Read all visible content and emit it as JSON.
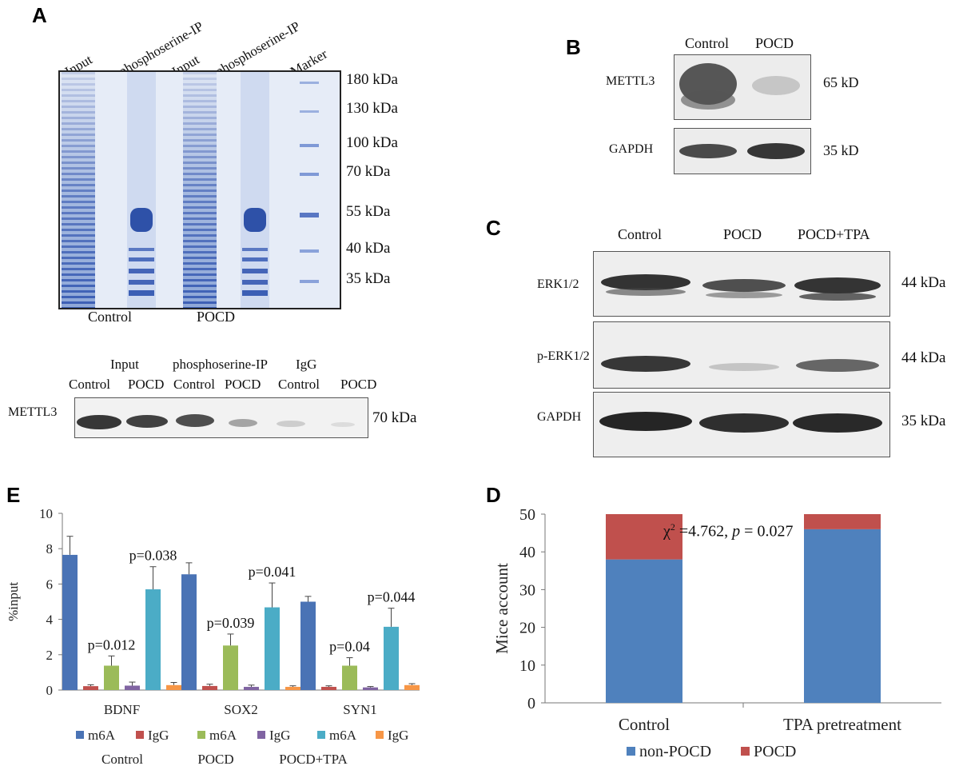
{
  "panelA": {
    "letter": "A",
    "lanes": [
      "Input",
      "phosphoserine-IP",
      "Input",
      "phosphoserine-IP",
      "Marker"
    ],
    "mw": [
      "180 kDa",
      "130 kDa",
      "100 kDa",
      "70 kDa",
      "55 kDa",
      "40 kDa",
      "35 kDa"
    ],
    "groups": [
      "Control",
      "POCD"
    ],
    "wb": {
      "top_labels": [
        "Input",
        "phosphoserine-IP",
        "IgG"
      ],
      "lane_labels": [
        "Control",
        "POCD",
        "Control",
        "POCD",
        "Control",
        "POCD"
      ],
      "row_label": "METTL3",
      "size": "70 kDa"
    }
  },
  "panelB": {
    "letter": "B",
    "lanes": [
      "Control",
      "POCD"
    ],
    "rows": [
      {
        "label": "METTL3",
        "size": "65 kD"
      },
      {
        "label": "GAPDH",
        "size": "35 kD"
      }
    ]
  },
  "panelC": {
    "letter": "C",
    "lanes": [
      "Control",
      "POCD",
      "POCD+TPA"
    ],
    "rows": [
      {
        "label": "ERK1/2",
        "size": "44 kDa"
      },
      {
        "label": "p-ERK1/2",
        "size": "44 kDa"
      },
      {
        "label": "GAPDH",
        "size": "35 kDa"
      }
    ]
  },
  "panelE": {
    "letter": "E",
    "legend_groups": [
      "Control",
      "POCD",
      "POCD+TPA"
    ]
  },
  "panelD": {
    "letter": "D",
    "annotation": {
      "chi": "χ",
      "sup": "2",
      "stat": " =4.762, ",
      "p": "p",
      "pval": " = 0.027"
    }
  },
  "chart_data": [
    {
      "type": "bar",
      "panel": "E",
      "categories": [
        "BDNF",
        "SOX2",
        "SYN1"
      ],
      "ylabel": "%input",
      "ylim": [
        0,
        10
      ],
      "yticks": [
        0,
        2,
        4,
        6,
        8,
        10
      ],
      "series": [
        {
          "name": "m6A",
          "group": "Control",
          "color": "#4a73b5",
          "values": [
            7.65,
            6.55,
            5.0
          ],
          "errors": [
            1.05,
            0.65,
            0.3
          ]
        },
        {
          "name": "IgG",
          "group": "Control",
          "color": "#c0504d",
          "values": [
            0.22,
            0.23,
            0.18
          ],
          "errors": [
            0.08,
            0.1,
            0.06
          ]
        },
        {
          "name": "m6A",
          "group": "POCD",
          "color": "#9bbb59",
          "values": [
            1.38,
            2.52,
            1.38
          ],
          "errors": [
            0.55,
            0.65,
            0.45
          ]
        },
        {
          "name": "IgG",
          "group": "POCD",
          "color": "#8064a2",
          "values": [
            0.25,
            0.18,
            0.15
          ],
          "errors": [
            0.2,
            0.1,
            0.05
          ]
        },
        {
          "name": "m6A",
          "group": "POCD+TPA",
          "color": "#4bacc6",
          "values": [
            5.7,
            4.68,
            3.58
          ],
          "errors": [
            1.28,
            1.38,
            1.05
          ]
        },
        {
          "name": "IgG",
          "group": "POCD+TPA",
          "color": "#f79646",
          "values": [
            0.28,
            0.18,
            0.28
          ],
          "errors": [
            0.15,
            0.06,
            0.08
          ]
        }
      ],
      "annotations": [
        {
          "text": "p=0.012",
          "category": "BDNF",
          "series_index": 2
        },
        {
          "text": "p=0.038",
          "category": "BDNF",
          "series_index": 4
        },
        {
          "text": "p=0.039",
          "category": "SOX2",
          "series_index": 2
        },
        {
          "text": "p=0.041",
          "category": "SOX2",
          "series_index": 4
        },
        {
          "text": "p=0.04",
          "category": "SYN1",
          "series_index": 2
        },
        {
          "text": "p=0.044",
          "category": "SYN1",
          "series_index": 4
        }
      ]
    },
    {
      "type": "bar",
      "stacked": true,
      "panel": "D",
      "categories": [
        "Control",
        "TPA pretreatment"
      ],
      "ylabel": "Mice account",
      "ylim": [
        0,
        50
      ],
      "yticks": [
        0,
        10,
        20,
        30,
        40,
        50
      ],
      "series": [
        {
          "name": "non-POCD",
          "color": "#4f81bd",
          "values": [
            38,
            46
          ]
        },
        {
          "name": "POCD",
          "color": "#c0504d",
          "values": [
            12,
            4
          ]
        }
      ],
      "legend": "bottom"
    }
  ]
}
